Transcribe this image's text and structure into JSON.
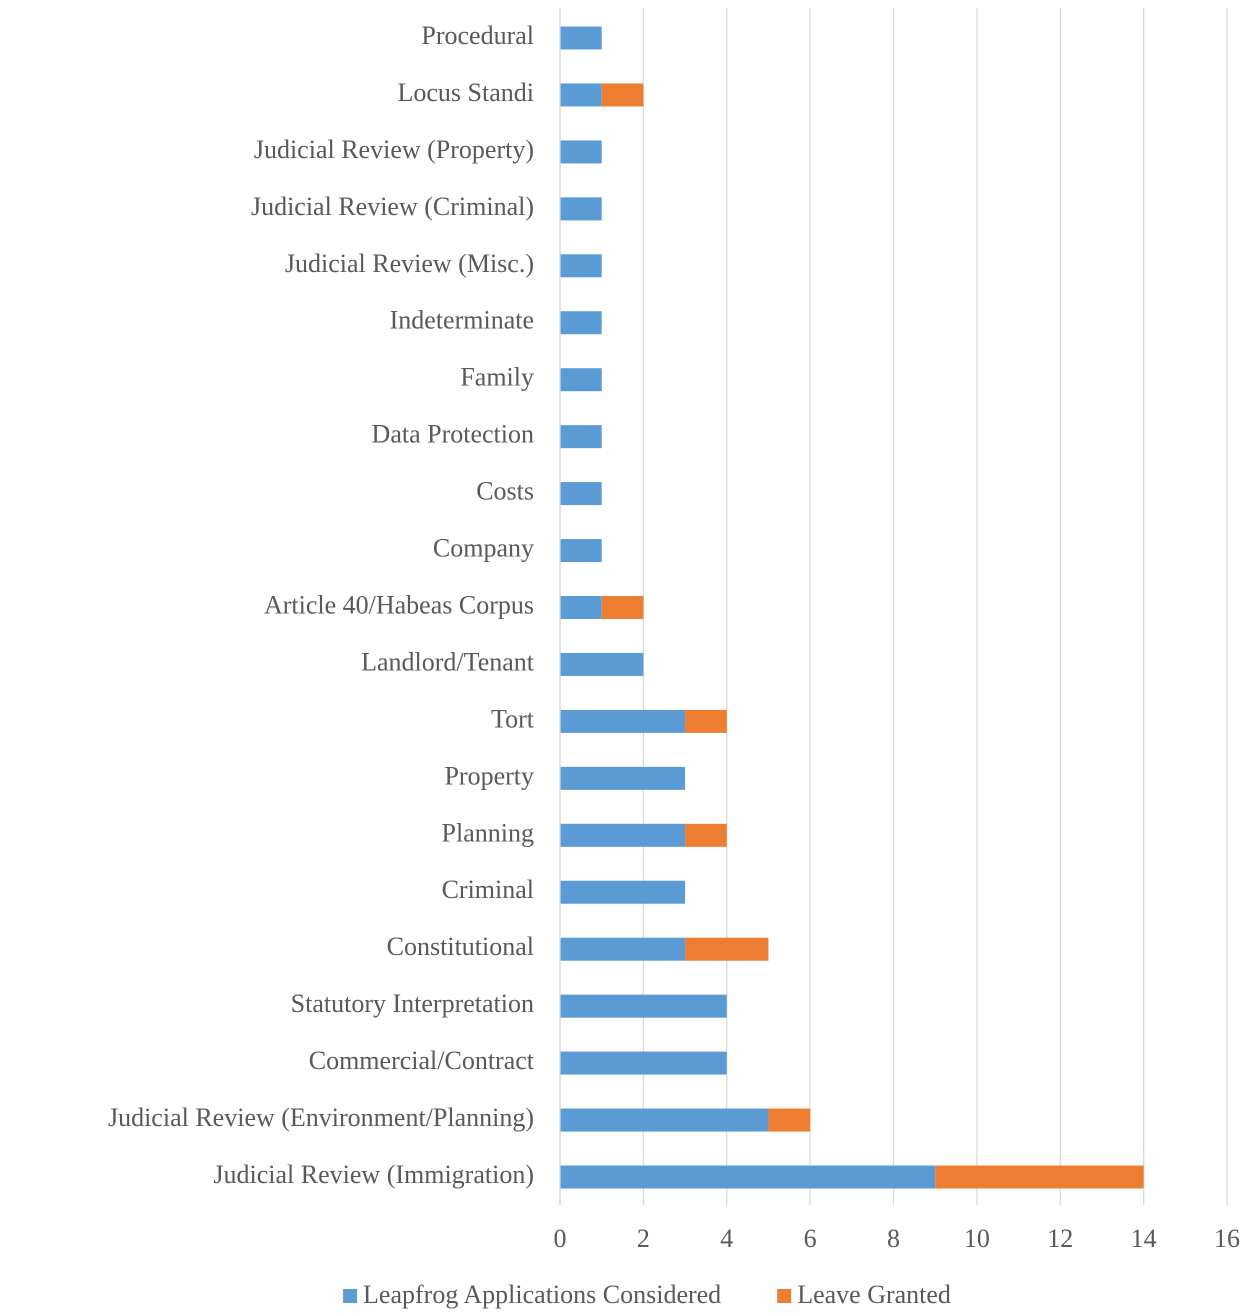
{
  "chart_data": {
    "type": "bar",
    "orientation": "horizontal",
    "stacked": true,
    "categories": [
      "Procedural",
      "Locus Standi",
      "Judicial Review (Property)",
      "Judicial Review (Criminal)",
      "Judicial Review (Misc.)",
      "Indeterminate",
      "Family",
      "Data Protection",
      "Costs",
      "Company",
      "Article 40/Habeas Corpus",
      "Landlord/Tenant",
      "Tort",
      "Property",
      "Planning",
      "Criminal",
      "Constitutional",
      "Statutory Interpretation",
      "Commercial/Contract",
      "Judicial Review (Environment/Planning)",
      "Judicial Review (Immigration)"
    ],
    "series": [
      {
        "name": "Leapfrog Applications Considered",
        "color": "#5b9bd5",
        "values": [
          1,
          1,
          1,
          1,
          1,
          1,
          1,
          1,
          1,
          1,
          1,
          2,
          3,
          3,
          3,
          3,
          3,
          4,
          4,
          5,
          9
        ]
      },
      {
        "name": "Leave Granted",
        "color": "#ed7d31",
        "values": [
          0,
          1,
          0,
          0,
          0,
          0,
          0,
          0,
          0,
          0,
          1,
          0,
          1,
          0,
          1,
          0,
          2,
          0,
          0,
          1,
          5
        ]
      }
    ],
    "xlim": [
      0,
      16
    ],
    "xticks": [
      0,
      2,
      4,
      6,
      8,
      10,
      12,
      14,
      16
    ],
    "grid": true,
    "legend": "bottom"
  }
}
